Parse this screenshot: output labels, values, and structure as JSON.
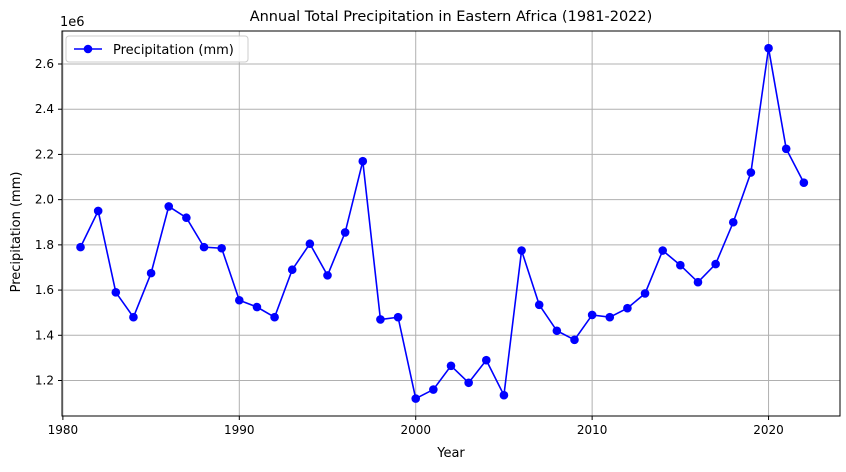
{
  "chart_data": {
    "type": "line",
    "title": "Annual Total Precipitation in Eastern Africa (1981-2022)",
    "xlabel": "Year",
    "ylabel": "Precipitation (mm)",
    "y_offset_label": "1e6",
    "xlim": [
      1979.95,
      2024.05
    ],
    "ylim": [
      1.043,
      2.746
    ],
    "x_ticks": [
      1980,
      1990,
      2000,
      2010,
      2020
    ],
    "y_ticks": [
      1.2,
      1.4,
      1.6,
      1.8,
      2.0,
      2.2,
      2.4,
      2.6
    ],
    "grid": true,
    "legend_position": "upper-left",
    "series": [
      {
        "name": "Precipitation (mm)",
        "color": "#0000ff",
        "marker": "circle",
        "x": [
          1981,
          1982,
          1983,
          1984,
          1985,
          1986,
          1987,
          1988,
          1989,
          1990,
          1991,
          1992,
          1993,
          1994,
          1995,
          1996,
          1997,
          1998,
          1999,
          2000,
          2001,
          2002,
          2003,
          2004,
          2005,
          2006,
          2007,
          2008,
          2009,
          2010,
          2011,
          2012,
          2013,
          2014,
          2015,
          2016,
          2017,
          2018,
          2019,
          2020,
          2021,
          2022
        ],
        "values": [
          1.79,
          1.95,
          1.59,
          1.48,
          1.675,
          1.97,
          1.92,
          1.79,
          1.785,
          1.555,
          1.525,
          1.48,
          1.69,
          1.805,
          1.665,
          1.855,
          2.17,
          1.47,
          1.48,
          1.12,
          1.16,
          1.265,
          1.19,
          1.29,
          1.135,
          1.775,
          1.535,
          1.42,
          1.38,
          1.49,
          1.48,
          1.52,
          1.585,
          1.775,
          1.71,
          1.635,
          1.715,
          1.9,
          2.12,
          2.67,
          2.225,
          2.075
        ]
      }
    ]
  }
}
